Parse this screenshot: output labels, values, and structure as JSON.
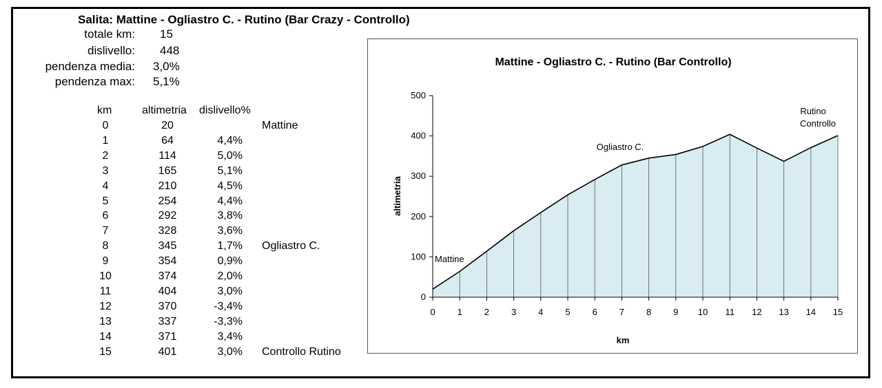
{
  "summary": {
    "title": "Salita: Mattine - Ogliastro C. - Rutino (Bar Crazy - Controllo)",
    "stats": [
      {
        "label": "totale km:",
        "value": "15"
      },
      {
        "label": "dislivello:",
        "value": "448"
      },
      {
        "label": "pendenza media:",
        "value": "3,0%"
      },
      {
        "label": "pendenza max:",
        "value": "5,1%"
      }
    ]
  },
  "table": {
    "headers": {
      "km": "km",
      "altimetria": "altimetria",
      "dislivello": "dislivello%"
    },
    "rows": [
      {
        "km": "0",
        "alt": "20",
        "dis": "",
        "name": "Mattine"
      },
      {
        "km": "1",
        "alt": "64",
        "dis": "4,4%",
        "name": ""
      },
      {
        "km": "2",
        "alt": "114",
        "dis": "5,0%",
        "name": ""
      },
      {
        "km": "3",
        "alt": "165",
        "dis": "5,1%",
        "name": ""
      },
      {
        "km": "4",
        "alt": "210",
        "dis": "4,5%",
        "name": ""
      },
      {
        "km": "5",
        "alt": "254",
        "dis": "4,4%",
        "name": ""
      },
      {
        "km": "6",
        "alt": "292",
        "dis": "3,8%",
        "name": ""
      },
      {
        "km": "7",
        "alt": "328",
        "dis": "3,6%",
        "name": ""
      },
      {
        "km": "8",
        "alt": "345",
        "dis": "1,7%",
        "name": "Ogliastro C."
      },
      {
        "km": "9",
        "alt": "354",
        "dis": "0,9%",
        "name": ""
      },
      {
        "km": "10",
        "alt": "374",
        "dis": "2,0%",
        "name": ""
      },
      {
        "km": "11",
        "alt": "404",
        "dis": "3,0%",
        "name": ""
      },
      {
        "km": "12",
        "alt": "370",
        "dis": "-3,4%",
        "name": ""
      },
      {
        "km": "13",
        "alt": "337",
        "dis": "-3,3%",
        "name": ""
      },
      {
        "km": "14",
        "alt": "371",
        "dis": "3,4%",
        "name": ""
      },
      {
        "km": "15",
        "alt": "401",
        "dis": "3,0%",
        "name": "Controllo Rutino"
      }
    ]
  },
  "chart_data": {
    "type": "area",
    "title": "Mattine - Ogliastro C. - Rutino (Bar Controllo)",
    "xlabel": "km",
    "ylabel": "altimetria",
    "x": [
      0,
      1,
      2,
      3,
      4,
      5,
      6,
      7,
      8,
      9,
      10,
      11,
      12,
      13,
      14,
      15
    ],
    "values": [
      20,
      64,
      114,
      165,
      210,
      254,
      292,
      328,
      345,
      354,
      374,
      404,
      370,
      337,
      371,
      401
    ],
    "xlim": [
      0,
      15
    ],
    "ylim": [
      0,
      500
    ],
    "yticks": [
      0,
      100,
      200,
      300,
      400,
      500
    ],
    "grid": false,
    "colors": {
      "fill": "#d9ecf2",
      "line": "#000000"
    },
    "annotations": [
      {
        "text": "Mattine",
        "x": 0,
        "y": 20
      },
      {
        "text": "Ogliastro C.",
        "x": 8,
        "y": 345
      },
      {
        "text": "Rutino",
        "x": 15,
        "y": 401
      },
      {
        "text": "Controllo",
        "x": 15,
        "y": 401
      }
    ]
  }
}
